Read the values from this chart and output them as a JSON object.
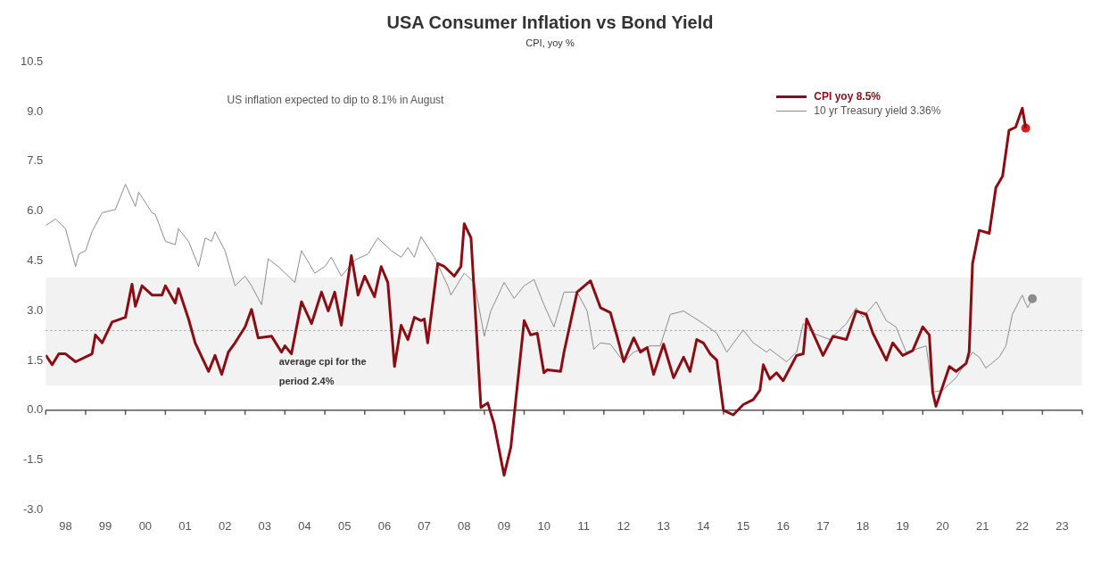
{
  "chart_data": {
    "type": "line",
    "title": "USA Consumer Inflation vs Bond Yield",
    "subtitle": "CPI, yoy %",
    "xlim": [
      "1998-01",
      "2024-01"
    ],
    "xticks": [
      {
        "value": "1998-01",
        "label": null
      },
      {
        "value": "1998-07",
        "label": "98"
      },
      {
        "value": "1999-01",
        "label": null
      },
      {
        "value": "1999-07",
        "label": "99"
      },
      {
        "value": "2000-01",
        "label": null
      },
      {
        "value": "2000-07",
        "label": "00"
      },
      {
        "value": "2001-01",
        "label": null
      },
      {
        "value": "2001-07",
        "label": "01"
      },
      {
        "value": "2002-01",
        "label": null
      },
      {
        "value": "2002-07",
        "label": "02"
      },
      {
        "value": "2003-01",
        "label": null
      },
      {
        "value": "2003-07",
        "label": "03"
      },
      {
        "value": "2004-01",
        "label": null
      },
      {
        "value": "2004-07",
        "label": "04"
      },
      {
        "value": "2005-01",
        "label": null
      },
      {
        "value": "2005-07",
        "label": "05"
      },
      {
        "value": "2006-01",
        "label": null
      },
      {
        "value": "2006-07",
        "label": "06"
      },
      {
        "value": "2007-01",
        "label": null
      },
      {
        "value": "2007-07",
        "label": "07"
      },
      {
        "value": "2008-01",
        "label": null
      },
      {
        "value": "2008-07",
        "label": "08"
      },
      {
        "value": "2009-01",
        "label": null
      },
      {
        "value": "2009-07",
        "label": "09"
      },
      {
        "value": "2010-01",
        "label": null
      },
      {
        "value": "2010-07",
        "label": "10"
      },
      {
        "value": "2011-01",
        "label": null
      },
      {
        "value": "2011-07",
        "label": "11"
      },
      {
        "value": "2012-01",
        "label": null
      },
      {
        "value": "2012-07",
        "label": "12"
      },
      {
        "value": "2013-01",
        "label": null
      },
      {
        "value": "2013-07",
        "label": "13"
      },
      {
        "value": "2014-01",
        "label": null
      },
      {
        "value": "2014-07",
        "label": "14"
      },
      {
        "value": "2015-01",
        "label": null
      },
      {
        "value": "2015-07",
        "label": "15"
      },
      {
        "value": "2016-01",
        "label": null
      },
      {
        "value": "2016-07",
        "label": "16"
      },
      {
        "value": "2017-01",
        "label": null
      },
      {
        "value": "2017-07",
        "label": "17"
      },
      {
        "value": "2018-01",
        "label": null
      },
      {
        "value": "2018-07",
        "label": "18"
      },
      {
        "value": "2019-01",
        "label": null
      },
      {
        "value": "2019-07",
        "label": "19"
      },
      {
        "value": "2020-01",
        "label": null
      },
      {
        "value": "2020-07",
        "label": "20"
      },
      {
        "value": "2021-01",
        "label": null
      },
      {
        "value": "2021-07",
        "label": "21"
      },
      {
        "value": "2022-01",
        "label": null
      },
      {
        "value": "2022-07",
        "label": "22"
      },
      {
        "value": "2023-01",
        "label": null
      },
      {
        "value": "2023-07",
        "label": "23"
      },
      {
        "value": "2024-01",
        "label": null
      }
    ],
    "ylim": [
      -3,
      10.5
    ],
    "yticks": [
      {
        "value": -3,
        "label": "-3.0"
      },
      {
        "value": -1.5,
        "label": "-1.5"
      },
      {
        "value": 0,
        "label": "0.0"
      },
      {
        "value": 1.5,
        "label": "1.5"
      },
      {
        "value": 3,
        "label": "3.0"
      },
      {
        "value": 4.5,
        "label": "4.5"
      },
      {
        "value": 6,
        "label": "6.0"
      },
      {
        "value": 7.5,
        "label": "7.5"
      },
      {
        "value": 9,
        "label": "9.0"
      },
      {
        "value": 10.5,
        "label": "10.5"
      }
    ],
    "grid": false,
    "legend": "top right",
    "marker": "none",
    "annotations": [
      "US inflation expected to dip to 8.1% in August"
    ],
    "ref_lines": [
      {
        "axis": "y",
        "value": 0,
        "color": "#555555",
        "line_style": "solid"
      },
      {
        "axis": "y",
        "value": 2.4,
        "label": "average cpi for the period 2.4%",
        "color": "#9a9a9a",
        "line_style": "dotted"
      }
    ],
    "bands": [
      {
        "axis": "y",
        "from": 0.75,
        "to": 4.0,
        "color": "#f2f2f2"
      }
    ],
    "series": [
      {
        "name": "CPI yoy 8.5%",
        "color": "#8b0d14",
        "x": [
          "1998-01",
          "1998-03",
          "1998-05",
          "1998-07",
          "1998-10",
          "1999-03",
          "1999-04",
          "1999-06",
          "1999-09",
          "2000-01",
          "2000-03",
          "2000-04",
          "2000-06",
          "2000-09",
          "2000-12",
          "2001-01",
          "2001-04",
          "2001-05",
          "2001-08",
          "2001-10",
          "2002-02",
          "2002-04",
          "2002-06",
          "2002-08",
          "2002-10",
          "2003-01",
          "2003-03",
          "2003-05",
          "2003-09",
          "2003-12",
          "2004-01",
          "2004-03",
          "2004-06",
          "2004-09",
          "2004-12",
          "2005-02",
          "2005-04",
          "2005-06",
          "2005-09",
          "2005-11",
          "2006-01",
          "2006-04",
          "2006-06",
          "2006-08",
          "2006-10",
          "2006-12",
          "2007-02",
          "2007-04",
          "2007-06",
          "2007-07",
          "2007-08",
          "2007-11",
          "2008-01",
          "2008-04",
          "2008-06",
          "2008-07",
          "2008-09",
          "2008-12",
          "2009-02",
          "2009-04",
          "2009-07",
          "2009-09",
          "2010-01",
          "2010-03",
          "2010-05",
          "2010-07",
          "2010-08",
          "2010-12",
          "2011-01",
          "2011-05",
          "2011-09",
          "2011-12",
          "2012-03",
          "2012-05",
          "2012-07",
          "2012-10",
          "2012-12",
          "2013-02",
          "2013-04",
          "2013-07",
          "2013-10",
          "2014-01",
          "2014-03",
          "2014-05",
          "2014-07",
          "2014-09",
          "2014-11",
          "2015-01",
          "2015-04",
          "2015-07",
          "2015-10",
          "2015-12",
          "2016-01",
          "2016-03",
          "2016-05",
          "2016-07",
          "2016-11",
          "2017-01",
          "2017-02",
          "2017-07",
          "2017-10",
          "2018-02",
          "2018-05",
          "2018-08",
          "2018-10",
          "2019-02",
          "2019-04",
          "2019-07",
          "2019-10",
          "2020-01",
          "2020-03",
          "2020-04",
          "2020-05",
          "2020-09",
          "2020-11",
          "2021-02",
          "2021-03",
          "2021-04",
          "2021-06",
          "2021-09",
          "2021-11",
          "2022-01",
          "2022-03",
          "2022-05",
          "2022-07",
          "2022-08"
        ],
        "values": [
          1.66,
          1.37,
          1.7,
          1.7,
          1.46,
          1.7,
          2.27,
          2.03,
          2.66,
          2.8,
          3.8,
          3.13,
          3.75,
          3.47,
          3.47,
          3.75,
          3.23,
          3.66,
          2.75,
          2.03,
          1.17,
          1.65,
          1.08,
          1.75,
          2.03,
          2.51,
          3.04,
          2.18,
          2.23,
          1.75,
          1.94,
          1.7,
          3.27,
          2.61,
          3.56,
          2.99,
          3.56,
          2.56,
          4.66,
          3.47,
          4.04,
          3.42,
          4.33,
          3.85,
          1.32,
          2.56,
          2.13,
          2.8,
          2.7,
          2.75,
          2.03,
          4.42,
          4.33,
          4.04,
          4.33,
          5.62,
          5.19,
          0.08,
          0.22,
          -0.42,
          -1.96,
          -1.11,
          2.7,
          2.27,
          2.32,
          1.13,
          1.22,
          1.17,
          1.75,
          3.56,
          3.9,
          3.09,
          2.94,
          2.23,
          1.46,
          2.18,
          1.75,
          1.89,
          1.08,
          1.99,
          0.98,
          1.6,
          1.17,
          2.13,
          2.03,
          1.7,
          1.51,
          0.0,
          -0.14,
          0.17,
          0.32,
          0.6,
          1.37,
          0.94,
          1.13,
          0.89,
          1.65,
          1.7,
          2.75,
          1.65,
          2.23,
          2.13,
          2.99,
          2.89,
          2.32,
          1.51,
          2.03,
          1.65,
          1.8,
          2.51,
          2.27,
          0.55,
          0.12,
          1.32,
          1.17,
          1.41,
          1.75,
          4.42,
          5.42,
          5.33,
          6.71,
          7.05,
          8.43,
          8.53,
          9.1,
          8.5
        ]
      },
      {
        "name": "10 yr Treasury yield 3.36%",
        "color": "#8c8c8c",
        "x": [
          "1998-01",
          "1998-04",
          "1998-07",
          "1998-10",
          "1998-11",
          "1999-01",
          "1999-03",
          "1999-06",
          "1999-10",
          "2000-01",
          "2000-04",
          "2000-05",
          "2000-09",
          "2000-10",
          "2001-01",
          "2001-04",
          "2001-05",
          "2001-08",
          "2001-11",
          "2002-01",
          "2002-03",
          "2002-04",
          "2002-07",
          "2002-10",
          "2003-01",
          "2003-03",
          "2003-06",
          "2003-08",
          "2003-11",
          "2004-04",
          "2004-06",
          "2004-10",
          "2005-01",
          "2005-03",
          "2005-06",
          "2005-10",
          "2006-02",
          "2006-05",
          "2006-09",
          "2006-12",
          "2007-02",
          "2007-04",
          "2007-06",
          "2007-10",
          "2008-02",
          "2008-03",
          "2008-07",
          "2008-10",
          "2009-01",
          "2009-03",
          "2009-07",
          "2009-10",
          "2010-01",
          "2010-04",
          "2010-07",
          "2010-10",
          "2011-01",
          "2011-05",
          "2011-08",
          "2011-10",
          "2011-12",
          "2012-03",
          "2012-07",
          "2012-10",
          "2013-03",
          "2013-06",
          "2013-09",
          "2014-01",
          "2014-07",
          "2014-11",
          "2015-02",
          "2015-07",
          "2015-10",
          "2016-02",
          "2016-03",
          "2016-08",
          "2016-11",
          "2017-01",
          "2017-04",
          "2017-09",
          "2018-02",
          "2018-05",
          "2018-07",
          "2018-11",
          "2019-02",
          "2019-05",
          "2019-08",
          "2019-11",
          "2020-02",
          "2020-04",
          "2020-07",
          "2020-11",
          "2021-04",
          "2021-06",
          "2021-08",
          "2021-12",
          "2022-02",
          "2022-04",
          "2022-07-01",
          "2022-07-24",
          "2022-08-20",
          "2022-10-01"
        ],
        "values": [
          5.57,
          5.76,
          5.47,
          4.33,
          4.71,
          4.81,
          5.38,
          5.95,
          6.05,
          6.81,
          6.14,
          6.57,
          5.95,
          5.9,
          5.09,
          4.99,
          5.47,
          5.09,
          4.33,
          5.19,
          5.09,
          5.38,
          4.81,
          3.75,
          4.04,
          3.75,
          3.18,
          4.56,
          4.33,
          3.85,
          4.81,
          4.13,
          4.33,
          4.61,
          4.04,
          4.52,
          4.71,
          5.19,
          4.81,
          4.61,
          4.9,
          4.61,
          5.23,
          4.61,
          3.75,
          3.47,
          4.13,
          3.85,
          2.23,
          2.99,
          3.85,
          3.37,
          3.75,
          3.94,
          3.18,
          2.51,
          3.56,
          3.56,
          2.99,
          1.84,
          2.03,
          1.99,
          1.46,
          1.75,
          1.94,
          1.94,
          2.89,
          2.99,
          2.61,
          2.32,
          1.75,
          2.42,
          2.03,
          1.75,
          1.84,
          1.46,
          1.75,
          2.61,
          2.32,
          2.13,
          2.61,
          3.09,
          2.8,
          3.27,
          2.7,
          2.51,
          1.75,
          1.84,
          1.94,
          0.55,
          0.6,
          0.98,
          1.75,
          1.6,
          1.27,
          1.6,
          1.94,
          2.89,
          3.47,
          3.27,
          3.09,
          3.36
        ]
      },
      {
        "type": "scatter",
        "color": "#e01b24",
        "marker": "circle",
        "x": [
          "2022-08"
        ],
        "values": [
          8.5
        ]
      },
      {
        "type": "scatter",
        "color": "#8c8c8c",
        "marker": "circle",
        "x": [
          "2022-10-01"
        ],
        "values": [
          3.36
        ]
      }
    ]
  }
}
